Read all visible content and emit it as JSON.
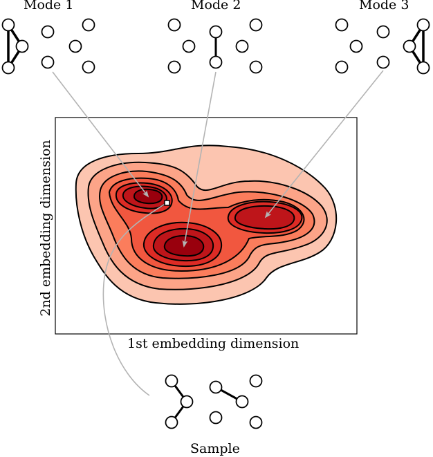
{
  "labels": {
    "mode1": "Mode 1",
    "mode2": "Mode 2",
    "mode3": "Mode 3",
    "xaxis": "1st embedding dimension",
    "yaxis": "2nd embedding dimension",
    "sample": "Sample"
  },
  "colors": {
    "level1": "#fcc5b0",
    "level2": "#fca488",
    "level3": "#fb7d5c",
    "level4": "#f1573f",
    "level5": "#dd2b25",
    "level6": "#be151a",
    "level7": "#99000d",
    "arrow": "#b3b3b3"
  }
}
